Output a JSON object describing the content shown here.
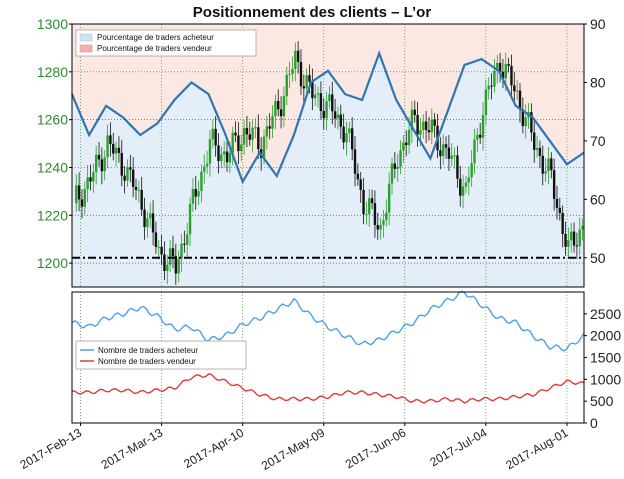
{
  "chart_data": [
    {
      "type": "line",
      "title": "Positionnement des clients – L’or",
      "left_axis": {
        "ylim": [
          1190,
          1300
        ],
        "ticks": [
          1200,
          1220,
          1240,
          1260,
          1280,
          1300
        ]
      },
      "right_axis": {
        "ylim": [
          45,
          90
        ],
        "ticks": [
          50,
          60,
          70,
          80,
          90
        ]
      },
      "x_ticks": [
        "2017-Feb-13",
        "2017-Mar-13",
        "2017-Apr-10",
        "2017-May-09",
        "2017-Jun-06",
        "2017-Jul-04",
        "2017-Aug-01"
      ],
      "reference_line": 50,
      "legend": {
        "position": "top-left",
        "entries": [
          "Pourcentage de traders acheteur",
          "Pourcentage de traders vendeur"
        ]
      },
      "price_ohlc_approx": {
        "x": [
          0,
          6,
          12,
          18,
          24,
          30,
          36,
          42,
          48,
          54,
          60,
          66,
          72,
          78,
          84,
          90,
          96,
          102,
          108,
          114,
          120,
          126,
          132,
          138,
          144,
          150,
          156,
          162,
          168,
          174,
          180
        ],
        "close": [
          1225,
          1235,
          1250,
          1240,
          1225,
          1205,
          1198,
          1225,
          1250,
          1245,
          1255,
          1250,
          1265,
          1285,
          1270,
          1265,
          1255,
          1225,
          1215,
          1245,
          1260,
          1255,
          1245,
          1230,
          1265,
          1285,
          1270,
          1250,
          1235,
          1205,
          1218
        ]
      },
      "percent_long": {
        "x": [
          0,
          6,
          12,
          18,
          24,
          30,
          36,
          42,
          48,
          54,
          60,
          66,
          72,
          78,
          84,
          90,
          96,
          102,
          108,
          114,
          120,
          126,
          132,
          138,
          144,
          150,
          156,
          162,
          168,
          174,
          180
        ],
        "values": [
          78,
          71,
          76,
          74,
          71,
          73,
          77,
          80,
          78,
          71,
          63,
          68,
          64,
          71,
          80,
          82,
          78,
          77,
          85,
          77,
          72,
          67,
          75,
          83,
          84,
          82,
          76,
          74,
          70,
          66,
          68
        ]
      },
      "series": [
        {
          "name": "Pourcentage de traders acheteur",
          "color": "#2e75b6"
        },
        {
          "name": "Pourcentage de traders vendeur",
          "color": "#f4b0b0"
        }
      ],
      "colors": {
        "candle_up": "#2ca02c",
        "candle_down": "#111111",
        "long_line": "#2e75b6",
        "fill_long": "#e3eef8",
        "fill_short": "#fbe8e2"
      }
    },
    {
      "type": "line",
      "ylim": [
        0,
        3000
      ],
      "right_ticks": [
        0,
        500,
        1000,
        1500,
        2000,
        2500
      ],
      "legend": {
        "position": "middle-left"
      },
      "series": [
        {
          "name": "Nombre de traders acheteur",
          "color": "#4aa3e8",
          "x": [
            0,
            6,
            12,
            18,
            24,
            30,
            36,
            42,
            48,
            54,
            60,
            66,
            72,
            78,
            84,
            90,
            96,
            102,
            108,
            114,
            120,
            126,
            132,
            138,
            144,
            150,
            156,
            162,
            168,
            174,
            180
          ],
          "values": [
            2300,
            2200,
            2400,
            2500,
            2650,
            2450,
            2150,
            2200,
            1900,
            2000,
            2250,
            2400,
            2600,
            2800,
            2450,
            2200,
            2000,
            1800,
            1900,
            2100,
            2300,
            2600,
            2800,
            3000,
            2700,
            2400,
            2300,
            2000,
            1750,
            1700,
            2000
          ]
        },
        {
          "name": "Nombre de traders vendeur",
          "color": "#e23a3a",
          "x": [
            0,
            6,
            12,
            18,
            24,
            30,
            36,
            42,
            48,
            54,
            60,
            66,
            72,
            78,
            84,
            90,
            96,
            102,
            108,
            114,
            120,
            126,
            132,
            138,
            144,
            150,
            156,
            162,
            168,
            174,
            180
          ],
          "values": [
            700,
            700,
            750,
            750,
            700,
            750,
            800,
            1050,
            1100,
            950,
            800,
            650,
            550,
            550,
            550,
            600,
            700,
            700,
            650,
            600,
            500,
            500,
            550,
            500,
            550,
            550,
            600,
            650,
            800,
            950,
            900
          ]
        }
      ]
    }
  ]
}
